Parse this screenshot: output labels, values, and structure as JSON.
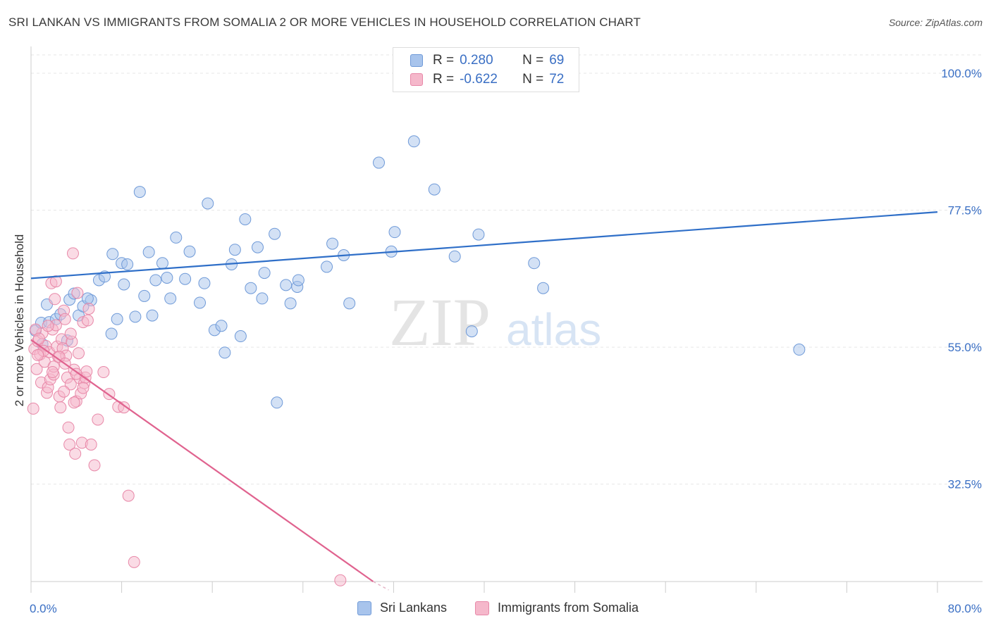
{
  "header": {
    "title": "SRI LANKAN VS IMMIGRANTS FROM SOMALIA 2 OR MORE VEHICLES IN HOUSEHOLD CORRELATION CHART",
    "source": "Source: ZipAtlas.com"
  },
  "watermark": {
    "zip": "ZIP",
    "atlas": "atlas"
  },
  "legend": {
    "rows": [
      {
        "r_label": "R =",
        "r_value": "0.280",
        "n_label": "N =",
        "n_value": "69",
        "color": "#a8c4ec",
        "border": "#6f9ad8"
      },
      {
        "r_label": "R =",
        "r_value": "-0.622",
        "n_label": "N =",
        "n_value": "72",
        "color": "#f5b8cb",
        "border": "#e888a8"
      }
    ]
  },
  "bottom_legend": {
    "items": [
      {
        "label": "Sri Lankans",
        "color": "#a8c4ec",
        "border": "#6f9ad8"
      },
      {
        "label": "Immigrants from Somalia",
        "color": "#f5b8cb",
        "border": "#e888a8"
      }
    ]
  },
  "chart_data": {
    "type": "scatter",
    "title": "SRI LANKAN VS IMMIGRANTS FROM SOMALIA 2 OR MORE VEHICLES IN HOUSEHOLD CORRELATION CHART",
    "xlabel": "",
    "ylabel": "2 or more Vehicles in Household",
    "xlim": [
      0,
      80
    ],
    "ylim": [
      16.5,
      103
    ],
    "x_tick_labels": [
      {
        "value": 0,
        "label": "0.0%"
      },
      {
        "value": 80,
        "label": "80.0%"
      }
    ],
    "y_tick_labels": [
      {
        "value": 100,
        "label": "100.0%"
      },
      {
        "value": 77.5,
        "label": "77.5%"
      },
      {
        "value": 55,
        "label": "55.0%"
      },
      {
        "value": 32.5,
        "label": "32.5%"
      }
    ],
    "grid": true,
    "series": [
      {
        "name": "Sri Lankans",
        "color": "#a8c4ec",
        "stroke": "#6f9ad8",
        "trend": {
          "color": "#2f6fc8",
          "x": [
            0,
            80
          ],
          "y": [
            66.3,
            77.2
          ]
        },
        "points": [
          [
            0.4,
            57.7
          ],
          [
            0.9,
            59.0
          ],
          [
            1.4,
            62.0
          ],
          [
            1.6,
            59.1
          ],
          [
            2.2,
            59.6
          ],
          [
            3.2,
            56.1
          ],
          [
            3.4,
            62.8
          ],
          [
            3.8,
            63.8
          ],
          [
            4.2,
            60.2
          ],
          [
            4.6,
            61.7
          ],
          [
            5.3,
            62.7
          ],
          [
            6.0,
            66.0
          ],
          [
            6.5,
            66.6
          ],
          [
            7.1,
            57.2
          ],
          [
            7.6,
            59.6
          ],
          [
            8.0,
            68.8
          ],
          [
            8.2,
            65.3
          ],
          [
            8.5,
            68.6
          ],
          [
            9.2,
            60.0
          ],
          [
            9.6,
            80.5
          ],
          [
            10.0,
            63.4
          ],
          [
            10.4,
            70.6
          ],
          [
            10.7,
            60.2
          ],
          [
            11.0,
            66.0
          ],
          [
            11.6,
            68.8
          ],
          [
            12.0,
            66.4
          ],
          [
            12.8,
            73.0
          ],
          [
            13.6,
            66.2
          ],
          [
            14.0,
            70.7
          ],
          [
            14.9,
            62.3
          ],
          [
            15.3,
            65.5
          ],
          [
            15.6,
            78.6
          ],
          [
            16.2,
            57.8
          ],
          [
            16.8,
            58.5
          ],
          [
            17.1,
            54.1
          ],
          [
            17.7,
            68.6
          ],
          [
            18.0,
            71.0
          ],
          [
            18.5,
            56.8
          ],
          [
            18.9,
            76.0
          ],
          [
            19.4,
            64.7
          ],
          [
            20.0,
            71.4
          ],
          [
            20.4,
            63.0
          ],
          [
            20.6,
            67.2
          ],
          [
            21.5,
            73.6
          ],
          [
            21.7,
            45.9
          ],
          [
            22.5,
            65.2
          ],
          [
            22.9,
            62.2
          ],
          [
            23.5,
            64.9
          ],
          [
            23.6,
            66.0
          ],
          [
            26.1,
            68.2
          ],
          [
            26.6,
            72.0
          ],
          [
            27.6,
            70.1
          ],
          [
            28.1,
            62.2
          ],
          [
            30.7,
            85.3
          ],
          [
            31.8,
            70.7
          ],
          [
            32.1,
            73.9
          ],
          [
            33.8,
            88.8
          ],
          [
            35.6,
            80.9
          ],
          [
            37.4,
            69.9
          ],
          [
            38.9,
            57.6
          ],
          [
            39.5,
            73.5
          ],
          [
            44.4,
            68.8
          ],
          [
            45.2,
            64.7
          ],
          [
            67.8,
            54.6
          ],
          [
            1.0,
            55.5
          ],
          [
            2.6,
            60.4
          ],
          [
            5.0,
            63.0
          ],
          [
            7.2,
            70.3
          ],
          [
            12.3,
            63.0
          ]
        ]
      },
      {
        "name": "Immigrants from Somalia",
        "color": "#f5b8cb",
        "stroke": "#e888a8",
        "trend": {
          "color": "#e0638f",
          "x": [
            0,
            30.2
          ],
          "y": [
            56.2,
            16.5
          ]
        },
        "points": [
          [
            0.2,
            44.9
          ],
          [
            0.3,
            54.7
          ],
          [
            0.5,
            51.4
          ],
          [
            0.6,
            56.0
          ],
          [
            0.8,
            53.8
          ],
          [
            0.9,
            49.2
          ],
          [
            1.0,
            57.3
          ],
          [
            1.2,
            52.6
          ],
          [
            1.3,
            55.2
          ],
          [
            1.4,
            47.5
          ],
          [
            1.5,
            48.4
          ],
          [
            1.6,
            54.2
          ],
          [
            1.7,
            49.7
          ],
          [
            1.8,
            65.5
          ],
          [
            1.9,
            57.9
          ],
          [
            2.0,
            50.5
          ],
          [
            2.1,
            62.9
          ],
          [
            2.2,
            58.6
          ],
          [
            2.3,
            55.1
          ],
          [
            2.4,
            53.4
          ],
          [
            2.5,
            46.9
          ],
          [
            2.6,
            45.1
          ],
          [
            2.7,
            56.3
          ],
          [
            2.8,
            54.8
          ],
          [
            2.9,
            61.0
          ],
          [
            3.0,
            59.6
          ],
          [
            3.1,
            53.6
          ],
          [
            3.2,
            50.0
          ],
          [
            3.3,
            41.8
          ],
          [
            3.4,
            39.0
          ],
          [
            3.5,
            48.9
          ],
          [
            3.6,
            55.9
          ],
          [
            3.7,
            70.4
          ],
          [
            3.8,
            51.3
          ],
          [
            3.9,
            37.5
          ],
          [
            4.0,
            46.1
          ],
          [
            4.1,
            63.9
          ],
          [
            4.2,
            54.0
          ],
          [
            4.3,
            49.9
          ],
          [
            4.4,
            47.4
          ],
          [
            4.5,
            39.3
          ],
          [
            4.6,
            59.1
          ],
          [
            4.7,
            49.1
          ],
          [
            4.8,
            50.0
          ],
          [
            4.9,
            51.0
          ],
          [
            5.1,
            61.3
          ],
          [
            5.3,
            39.0
          ],
          [
            5.6,
            35.6
          ],
          [
            5.9,
            43.1
          ],
          [
            6.4,
            50.9
          ],
          [
            6.9,
            47.3
          ],
          [
            7.7,
            45.2
          ],
          [
            8.2,
            45.1
          ],
          [
            8.6,
            30.6
          ],
          [
            9.1,
            19.7
          ],
          [
            27.3,
            16.7
          ],
          [
            0.4,
            57.9
          ],
          [
            0.7,
            56.4
          ],
          [
            1.1,
            54.4
          ],
          [
            1.5,
            58.5
          ],
          [
            2.0,
            51.8
          ],
          [
            2.5,
            53.4
          ],
          [
            3.0,
            52.3
          ],
          [
            3.5,
            57.2
          ],
          [
            4.0,
            50.6
          ],
          [
            4.6,
            48.3
          ],
          [
            5.0,
            59.4
          ],
          [
            0.6,
            53.7
          ],
          [
            1.9,
            50.9
          ],
          [
            2.9,
            47.7
          ],
          [
            3.8,
            45.9
          ],
          [
            2.2,
            65.8
          ]
        ]
      }
    ]
  }
}
